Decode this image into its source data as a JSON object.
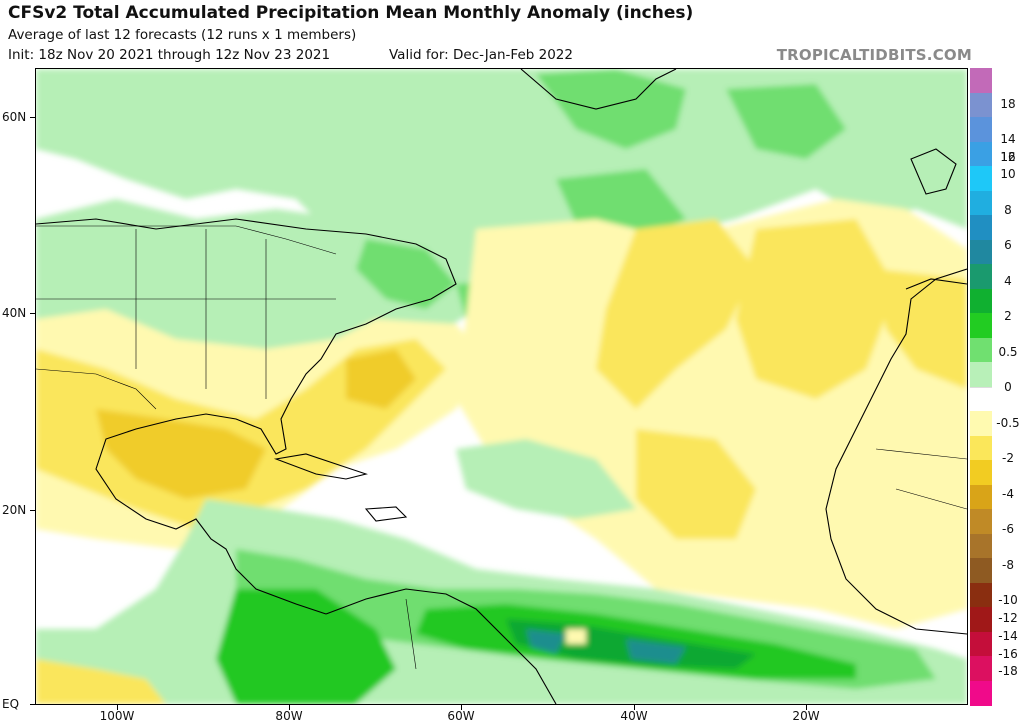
{
  "header": {
    "title": "CFSv2 Total Accumulated Precipitation Mean Monthly Anomaly (inches)",
    "subtitle": "Average of last 12 forecasts (12 runs x 1 members)",
    "init": "Init: 18z Nov 20 2021 through 12z Nov 23 2021",
    "valid": "Valid for: Dec-Jan-Feb 2022",
    "brand": "TROPICALTIDBITS.COM"
  },
  "axes": {
    "lat_labels": [
      "60N",
      "40N",
      "20N",
      "EQ"
    ],
    "lon_labels": [
      "100W",
      "80W",
      "60W",
      "40W",
      "20W"
    ]
  },
  "legend": {
    "labels": [
      "18",
      "14",
      "10",
      "6",
      "2",
      "0",
      "-2",
      "-6",
      "-10",
      "-14",
      "-18",
      "16",
      "12",
      "8",
      "4",
      "0.5",
      "-0.5",
      "-4",
      "-8",
      "-12",
      "-16"
    ],
    "bins": [
      {
        "color": "#c26ab8"
      },
      {
        "color": "#7b92d0"
      },
      {
        "color": "#5b93dc"
      },
      {
        "color": "#3aa0e4"
      },
      {
        "color": "#1ec8f8"
      },
      {
        "color": "#20aee0"
      },
      {
        "color": "#208fc2"
      },
      {
        "color": "#2088a0"
      },
      {
        "color": "#1a9a6e"
      },
      {
        "color": "#10b030"
      },
      {
        "color": "#22cc22"
      },
      {
        "color": "#70e070"
      },
      {
        "color": "#b8f0b8"
      },
      {
        "color": "#ffffff"
      },
      {
        "color": "#fffab0"
      },
      {
        "color": "#fbe75a"
      },
      {
        "color": "#f2cc22"
      },
      {
        "color": "#d9a418"
      },
      {
        "color": "#c08a26"
      },
      {
        "color": "#a8742a"
      },
      {
        "color": "#8e5a22"
      },
      {
        "color": "#8a2e10"
      },
      {
        "color": "#a01818"
      },
      {
        "color": "#c40e3a"
      },
      {
        "color": "#dc1060"
      },
      {
        "color": "#f00a8a"
      }
    ]
  },
  "map_colors": {
    "light_green": "#b6efb6",
    "green": "#70de70",
    "mid_green": "#22c822",
    "dark_green": "#10a830",
    "teal": "#1a8e8e",
    "light_yellow": "#fff9b0",
    "yellow": "#fae65c",
    "orange": "#f0cc2a"
  }
}
